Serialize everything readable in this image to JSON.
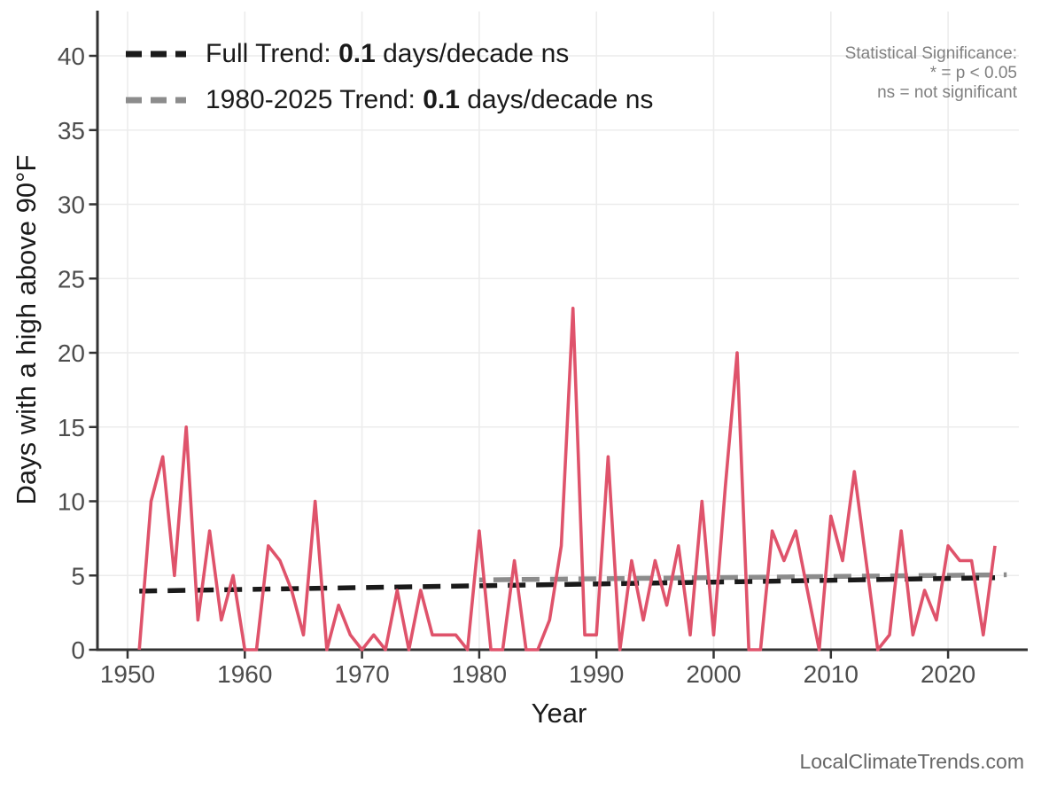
{
  "legend": {
    "items": [
      {
        "name": "full-trend",
        "prefix": "Full Trend: ",
        "value": "0.1",
        "suffix": " days/decade ns",
        "color": "#1A1A1A"
      },
      {
        "name": "1980-2025-trend",
        "prefix": "1980-2025 Trend: ",
        "value": "0.1",
        "suffix": " days/decade ns",
        "color": "#8C8C8C"
      }
    ]
  },
  "significance_note": {
    "line1": "Statistical Significance:",
    "line2": "* = p < 0.05",
    "line3": "ns = not significant"
  },
  "watermark": "LocalClimateTrends.com",
  "chart_data": {
    "type": "line",
    "title": "",
    "xlabel": "Year",
    "ylabel": "Days with a high above 90°F",
    "x_ticks": [
      1950,
      1960,
      1970,
      1980,
      1990,
      2000,
      2010,
      2020
    ],
    "y_ticks": [
      0,
      5,
      10,
      15,
      20,
      25,
      30,
      35,
      40
    ],
    "xlim": [
      1947.4,
      2026.2
    ],
    "ylim": [
      0,
      42.9
    ],
    "grid": true,
    "legend_position": "top-left",
    "series_name": "Days with a high above 90°F",
    "series_color": "#DF536B",
    "years": [
      1951,
      1952,
      1953,
      1954,
      1955,
      1956,
      1957,
      1958,
      1959,
      1960,
      1961,
      1962,
      1963,
      1964,
      1965,
      1966,
      1967,
      1968,
      1969,
      1970,
      1971,
      1972,
      1973,
      1974,
      1975,
      1976,
      1977,
      1978,
      1979,
      1980,
      1981,
      1982,
      1983,
      1984,
      1985,
      1986,
      1987,
      1988,
      1989,
      1990,
      1991,
      1992,
      1993,
      1994,
      1995,
      1996,
      1997,
      1998,
      1999,
      2000,
      2001,
      2002,
      2003,
      2004,
      2005,
      2006,
      2007,
      2008,
      2009,
      2010,
      2011,
      2012,
      2013,
      2014,
      2015,
      2016,
      2017,
      2018,
      2019,
      2020,
      2021,
      2022,
      2023,
      2024
    ],
    "values": [
      0,
      10,
      13,
      5,
      15,
      2,
      8,
      2,
      5,
      0,
      0,
      7,
      6,
      4,
      1,
      10,
      0,
      3,
      1,
      0,
      1,
      0,
      4,
      0,
      4,
      1,
      1,
      1,
      0,
      8,
      0,
      0,
      6,
      0,
      0,
      2,
      7,
      23,
      1,
      1,
      13,
      0,
      6,
      2,
      6,
      3,
      7,
      1,
      10,
      1,
      11,
      20,
      0,
      0,
      8,
      6,
      8,
      4,
      0,
      9,
      6,
      12,
      6,
      0,
      1,
      8,
      1,
      4,
      2,
      7,
      6,
      6,
      1,
      7
    ],
    "trends": [
      {
        "name": "1980-2025 Trend",
        "slope_per_decade": "0.1",
        "significance": "ns",
        "color": "#8C8C8C",
        "x0": 1980,
        "v0": 4.7,
        "x1": 2025,
        "v1": 5.05,
        "dashoffset": 16
      },
      {
        "name": "Full Trend",
        "slope_per_decade": "0.1",
        "significance": "ns",
        "color": "#1A1A1A",
        "x0": 1951,
        "v0": 3.95,
        "x1": 2024,
        "v1": 4.85,
        "dashoffset": 0
      }
    ],
    "colors": {
      "grid": "#ECECEC",
      "spine": "#333333",
      "tick_label": "#4D4D4D",
      "axis_title": "#1A1A1A"
    }
  }
}
